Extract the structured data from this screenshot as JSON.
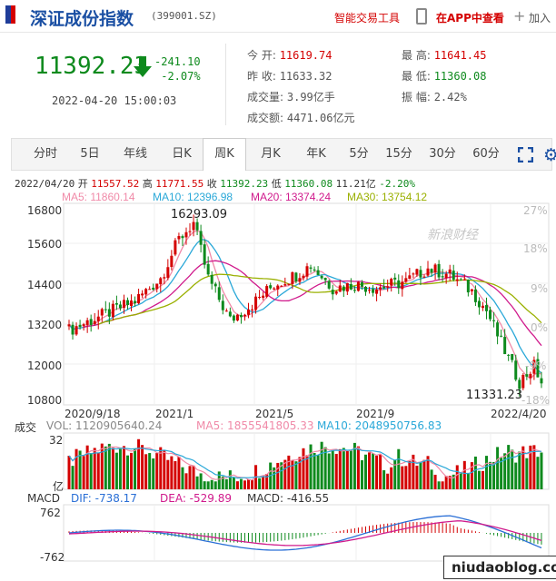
{
  "header": {
    "title": "深证成份指数",
    "code": "(399001.SZ)",
    "tool_link": "智能交易工具",
    "app_link": "在APP中查看",
    "add_label": "加入"
  },
  "quote": {
    "price": "11392.23",
    "change": "-241.10",
    "change_pct": "-2.07%",
    "datetime": "2022-04-20 15:00:03",
    "stats": [
      {
        "label": "今    开:",
        "value": "11619.74",
        "color": "#d40000"
      },
      {
        "label": "最    高:",
        "value": "11641.45",
        "color": "#d40000"
      },
      {
        "label": "昨    收:",
        "value": "11633.32",
        "color": "#333333"
      },
      {
        "label": "最    低:",
        "value": "11360.08",
        "color": "#0e8a1d"
      },
      {
        "label": "成交量:",
        "value": "3.99亿手",
        "color": "#333333"
      },
      {
        "label": "振    幅:",
        "value": "2.42%",
        "color": "#333333"
      },
      {
        "label": "成交额:",
        "value": "4471.06亿元",
        "color": "#333333"
      }
    ]
  },
  "tabs": [
    "分时",
    "5日",
    "年线",
    "日K",
    "周K",
    "月K",
    "年K",
    "5分",
    "15分",
    "30分",
    "60分"
  ],
  "active_tab": "周K",
  "ohlc_bar": {
    "date": "2022/04/20",
    "open_label": "开",
    "open": "11557.52",
    "high_label": "高",
    "high": "11771.55",
    "close_label": "收",
    "close": "11392.23",
    "low_label": "低",
    "low": "11360.08",
    "amp": "11.21亿",
    "pct": "-2.20%"
  },
  "ma_legend": [
    {
      "text": "MA5: 11860.14",
      "color": "#f08aa8"
    },
    {
      "text": "MA10: 12396.98",
      "color": "#2aa8d8"
    },
    {
      "text": "MA20: 13374.24",
      "color": "#d01a8c"
    },
    {
      "text": "MA30: 13754.12",
      "color": "#9ab000"
    }
  ],
  "watermark": "新浪财经",
  "chart_data": {
    "type": "candlestick",
    "price_axis": [
      "16800",
      "15600",
      "14400",
      "13200",
      "12000",
      "10800"
    ],
    "pct_axis": [
      "27%",
      "18%",
      "9%",
      "0%",
      "-9%",
      "-18%"
    ],
    "date_axis": [
      "2020/9/18",
      "2021/1",
      "2021/5",
      "2021/9",
      "2022/4/20"
    ],
    "annotations": {
      "max": "16293.09",
      "min": "11331.23"
    },
    "ylim": [
      10800,
      16800
    ]
  },
  "volume": {
    "label": "成交",
    "vol": "VOL: 1120905640.24",
    "ma5": "MA5: 1855541805.33",
    "ma10": "MA10: 2048950756.83",
    "axis_top": "32",
    "axis_unit": "亿"
  },
  "macd": {
    "label": "MACD",
    "dif": "DIF: -738.17",
    "dea": "DEA: -529.89",
    "macd": "MACD: -416.55",
    "axis_top": "762",
    "axis_bottom": "-762"
  },
  "site": "niudaoblog.com",
  "colors": {
    "up": "#d40000",
    "down": "#0e8a1d",
    "brand": "#1a4fa3"
  }
}
